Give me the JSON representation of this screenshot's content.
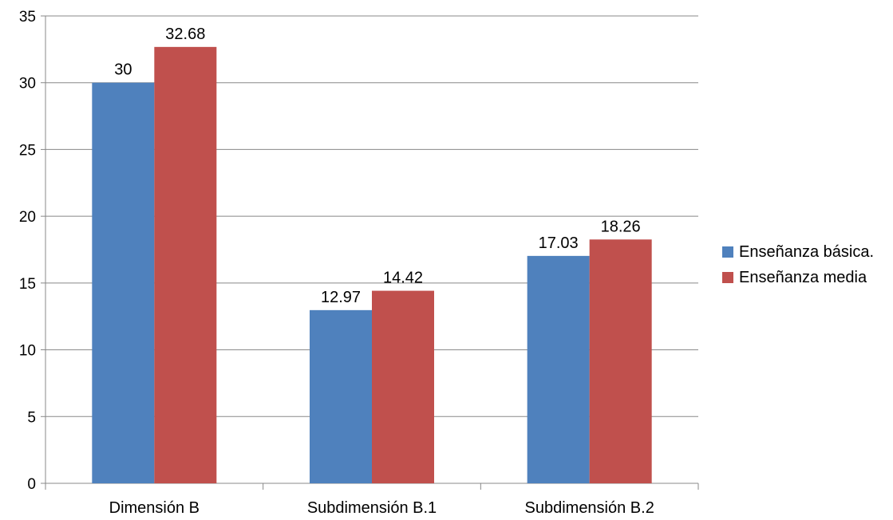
{
  "chart_data": {
    "type": "bar",
    "categories": [
      "Dimensión B",
      "Subdimensión B.1",
      "Subdimensión B.2"
    ],
    "series": [
      {
        "name": "Enseñanza básica.",
        "values": [
          30,
          12.97,
          17.03
        ],
        "color": "#4f81bd"
      },
      {
        "name": "Enseñanza media",
        "values": [
          32.68,
          14.42,
          18.26
        ],
        "color": "#c0504d"
      }
    ],
    "data_labels": [
      [
        "30",
        "12.97",
        "17.03"
      ],
      [
        "32.68",
        "14.42",
        "18.26"
      ]
    ],
    "yticks": [
      "0",
      "5",
      "10",
      "15",
      "20",
      "25",
      "30",
      "35"
    ],
    "ylim": [
      0,
      35
    ],
    "grid": true,
    "legend_position": "right",
    "title": "",
    "xlabel": "",
    "ylabel": ""
  }
}
